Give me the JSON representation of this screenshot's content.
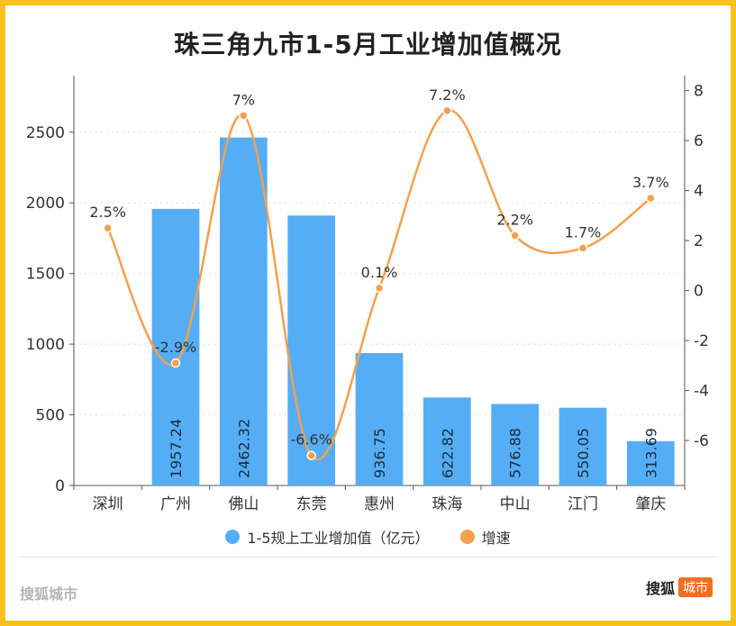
{
  "chart_data": {
    "type": "bar+line",
    "title": "珠三角九市1-5月工业增加值概况",
    "categories": [
      "深圳",
      "广州",
      "佛山",
      "东莞",
      "惠州",
      "珠海",
      "中山",
      "江门",
      "肇庆"
    ],
    "series": [
      {
        "name": "1-5规上工业增加值（亿元）",
        "type": "bar",
        "axis": "left",
        "color": "#55aef5",
        "values": [
          null,
          1957.24,
          2462.32,
          1910,
          936.75,
          622.82,
          576.88,
          550.05,
          313.69
        ],
        "labels": [
          "",
          "1957.24",
          "2462.32",
          "",
          "936.75",
          "622.82",
          "576.88",
          "550.05",
          "313.69"
        ]
      },
      {
        "name": "增速",
        "type": "line",
        "axis": "right",
        "color": "#f5a04d",
        "values": [
          2.5,
          -2.9,
          7,
          -6.6,
          0.1,
          7.2,
          2.2,
          1.7,
          3.7
        ],
        "labels": [
          "2.5%",
          "-2.9%",
          "7%",
          "-6.6%",
          "0.1%",
          "7.2%",
          "2.2%",
          "1.7%",
          "3.7%"
        ]
      }
    ],
    "y_left": {
      "range": [
        0,
        2900
      ],
      "ticks": [
        0,
        500,
        1000,
        1500,
        2000,
        2500
      ]
    },
    "y_right": {
      "range": [
        -7.8,
        8.6
      ],
      "ticks": [
        -6,
        -4,
        -2,
        0,
        2,
        4,
        6,
        8
      ]
    },
    "grid": true,
    "legend_position": "bottom"
  },
  "footer": {
    "left_text": "搜狐城市",
    "right_brand": "搜狐",
    "right_badge": "城市"
  }
}
